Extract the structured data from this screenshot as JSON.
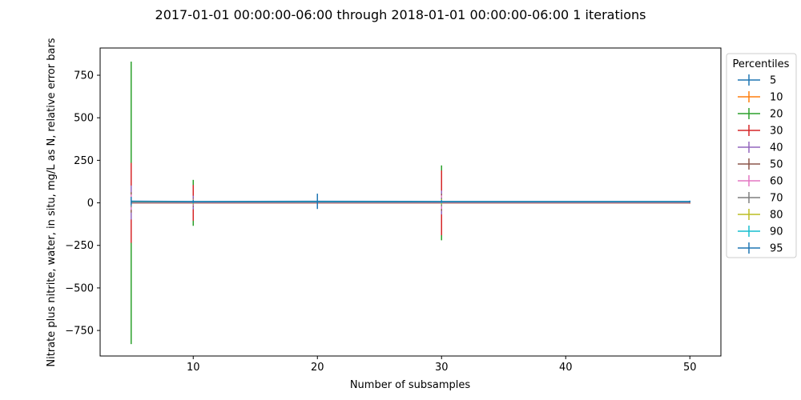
{
  "chart_data": {
    "type": "line",
    "title": "2017-01-01 00:00:00-06:00 through 2018-01-01 00:00:00-06:00 1 iterations",
    "xlabel": "Number of subsamples",
    "ylabel": "Nitrate plus nitrite, water, in situ, mg/L as N, relative error bars",
    "xlim": [
      2.5,
      52.5
    ],
    "ylim": [
      -900,
      910
    ],
    "xticks": [
      10,
      20,
      30,
      40,
      50
    ],
    "yticks": [
      -750,
      -500,
      -250,
      0,
      250,
      500,
      750
    ],
    "grid": false,
    "legend": {
      "title": "Percentiles",
      "placement": "outside-right"
    },
    "x": [
      5,
      10,
      20,
      30,
      50
    ],
    "series": [
      {
        "name": "5",
        "color": "#1f77b4",
        "y": [
          3,
          2,
          2,
          2,
          1
        ],
        "err": [
          10,
          6,
          3,
          8,
          2
        ]
      },
      {
        "name": "10",
        "color": "#ff7f0e",
        "y": [
          4,
          3,
          3,
          3,
          2
        ],
        "err": [
          12,
          10,
          4,
          10,
          3
        ]
      },
      {
        "name": "20",
        "color": "#2ca02c",
        "y": [
          0,
          0,
          0,
          0,
          0
        ],
        "err": [
          830,
          135,
          5,
          220,
          4
        ]
      },
      {
        "name": "30",
        "color": "#d62728",
        "y": [
          0,
          0,
          0,
          0,
          0
        ],
        "err": [
          235,
          105,
          5,
          190,
          4
        ]
      },
      {
        "name": "40",
        "color": "#9467bd",
        "y": [
          2,
          2,
          2,
          2,
          2
        ],
        "err": [
          100,
          40,
          5,
          70,
          4
        ]
      },
      {
        "name": "50",
        "color": "#8c564b",
        "y": [
          3,
          3,
          3,
          3,
          3
        ],
        "err": [
          60,
          25,
          5,
          50,
          4
        ]
      },
      {
        "name": "60",
        "color": "#e377c2",
        "y": [
          4,
          4,
          4,
          4,
          4
        ],
        "err": [
          45,
          20,
          5,
          40,
          4
        ]
      },
      {
        "name": "70",
        "color": "#7f7f7f",
        "y": [
          5,
          5,
          5,
          5,
          5
        ],
        "err": [
          30,
          15,
          5,
          25,
          4
        ]
      },
      {
        "name": "80",
        "color": "#bcbd22",
        "y": [
          6,
          6,
          6,
          6,
          6
        ],
        "err": [
          20,
          12,
          5,
          15,
          4
        ]
      },
      {
        "name": "90",
        "color": "#17becf",
        "y": [
          8,
          7,
          7,
          7,
          7
        ],
        "err": [
          15,
          10,
          5,
          10,
          4
        ]
      },
      {
        "name": "95",
        "color": "#1f77b4",
        "y": [
          10,
          8,
          9,
          8,
          8
        ],
        "err": [
          25,
          8,
          45,
          6,
          5
        ]
      }
    ]
  }
}
